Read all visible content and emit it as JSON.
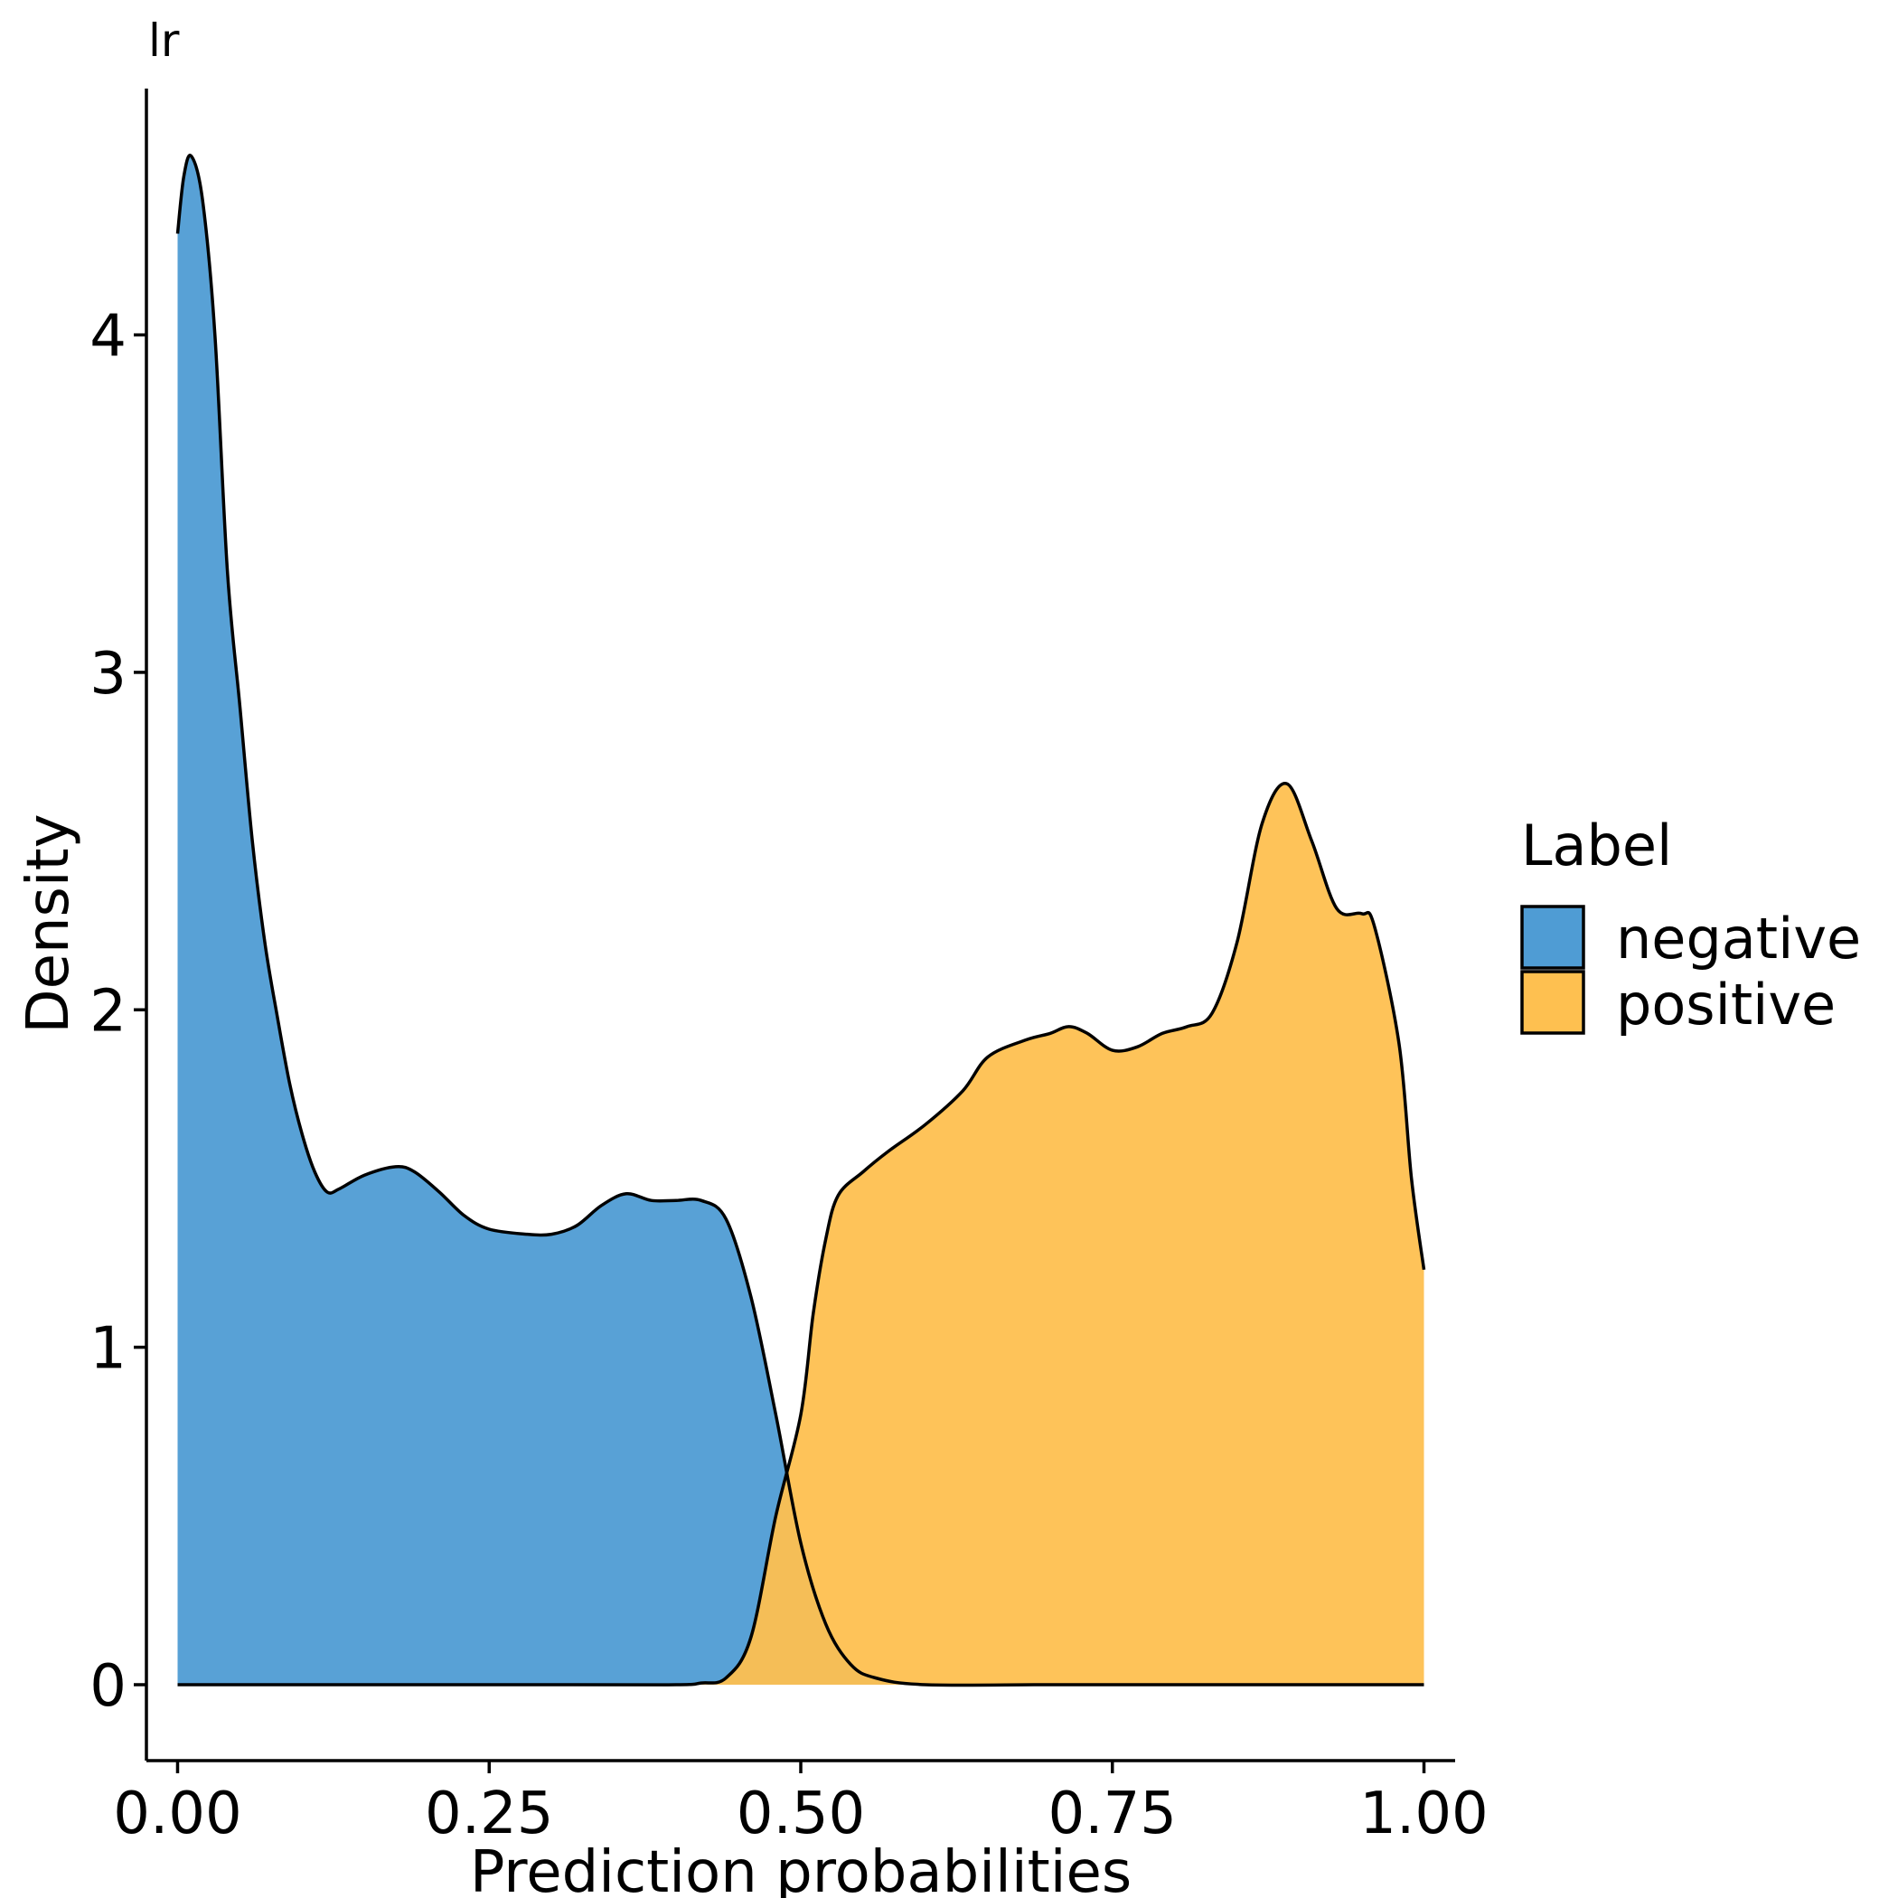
{
  "chart_data": {
    "type": "area",
    "title": "lr",
    "xlabel": "Prediction probabilities",
    "ylabel": "Density",
    "xlim": [
      -0.025,
      1.025
    ],
    "ylim": [
      -0.225,
      4.73
    ],
    "x_ticks": [
      0.0,
      0.25,
      0.5,
      0.75,
      1.0
    ],
    "x_tick_labels": [
      "0.00",
      "0.25",
      "0.50",
      "0.75",
      "1.00"
    ],
    "y_ticks": [
      0,
      1,
      2,
      3,
      4
    ],
    "y_tick_labels": [
      "0",
      "1",
      "2",
      "3",
      "4"
    ],
    "grid": false,
    "legend": {
      "title": "Label",
      "position": "right",
      "entries": [
        {
          "label": "negative",
          "color": "#4f9cd4"
        },
        {
          "label": "positive",
          "color": "#fec050"
        }
      ]
    },
    "series": [
      {
        "name": "negative",
        "color": "#4f9cd4",
        "points": [
          [
            0.0,
            4.3
          ],
          [
            0.005,
            4.47
          ],
          [
            0.011,
            4.53
          ],
          [
            0.02,
            4.4
          ],
          [
            0.03,
            4.0
          ],
          [
            0.04,
            3.3
          ],
          [
            0.05,
            2.9
          ],
          [
            0.06,
            2.5
          ],
          [
            0.07,
            2.2
          ],
          [
            0.08,
            1.98
          ],
          [
            0.09,
            1.78
          ],
          [
            0.1,
            1.63
          ],
          [
            0.11,
            1.52
          ],
          [
            0.12,
            1.46
          ],
          [
            0.13,
            1.47
          ],
          [
            0.15,
            1.51
          ],
          [
            0.175,
            1.535
          ],
          [
            0.19,
            1.52
          ],
          [
            0.21,
            1.46
          ],
          [
            0.23,
            1.39
          ],
          [
            0.25,
            1.35
          ],
          [
            0.28,
            1.335
          ],
          [
            0.3,
            1.335
          ],
          [
            0.32,
            1.36
          ],
          [
            0.34,
            1.42
          ],
          [
            0.36,
            1.455
          ],
          [
            0.38,
            1.435
          ],
          [
            0.4,
            1.435
          ],
          [
            0.42,
            1.435
          ],
          [
            0.44,
            1.38
          ],
          [
            0.46,
            1.15
          ],
          [
            0.48,
            0.8
          ],
          [
            0.5,
            0.42
          ],
          [
            0.52,
            0.18
          ],
          [
            0.54,
            0.06
          ],
          [
            0.56,
            0.02
          ],
          [
            0.6,
            0.0
          ],
          [
            0.7,
            0.0
          ],
          [
            0.8,
            0.0
          ],
          [
            0.9,
            0.0
          ],
          [
            1.0,
            0.0
          ]
        ]
      },
      {
        "name": "positive",
        "color": "#fec050",
        "points": [
          [
            0.0,
            0.0
          ],
          [
            0.3,
            0.0
          ],
          [
            0.4,
            0.0
          ],
          [
            0.42,
            0.005
          ],
          [
            0.44,
            0.02
          ],
          [
            0.46,
            0.14
          ],
          [
            0.48,
            0.5
          ],
          [
            0.5,
            0.8
          ],
          [
            0.51,
            1.1
          ],
          [
            0.52,
            1.32
          ],
          [
            0.53,
            1.45
          ],
          [
            0.55,
            1.52
          ],
          [
            0.57,
            1.58
          ],
          [
            0.6,
            1.66
          ],
          [
            0.63,
            1.76
          ],
          [
            0.65,
            1.86
          ],
          [
            0.68,
            1.91
          ],
          [
            0.7,
            1.93
          ],
          [
            0.715,
            1.95
          ],
          [
            0.73,
            1.93
          ],
          [
            0.75,
            1.88
          ],
          [
            0.77,
            1.89
          ],
          [
            0.79,
            1.93
          ],
          [
            0.81,
            1.95
          ],
          [
            0.83,
            1.99
          ],
          [
            0.85,
            2.2
          ],
          [
            0.87,
            2.55
          ],
          [
            0.89,
            2.67
          ],
          [
            0.91,
            2.5
          ],
          [
            0.93,
            2.3
          ],
          [
            0.95,
            2.285
          ],
          [
            0.96,
            2.25
          ],
          [
            0.98,
            1.9
          ],
          [
            0.99,
            1.5
          ],
          [
            1.0,
            1.23
          ]
        ]
      }
    ]
  }
}
